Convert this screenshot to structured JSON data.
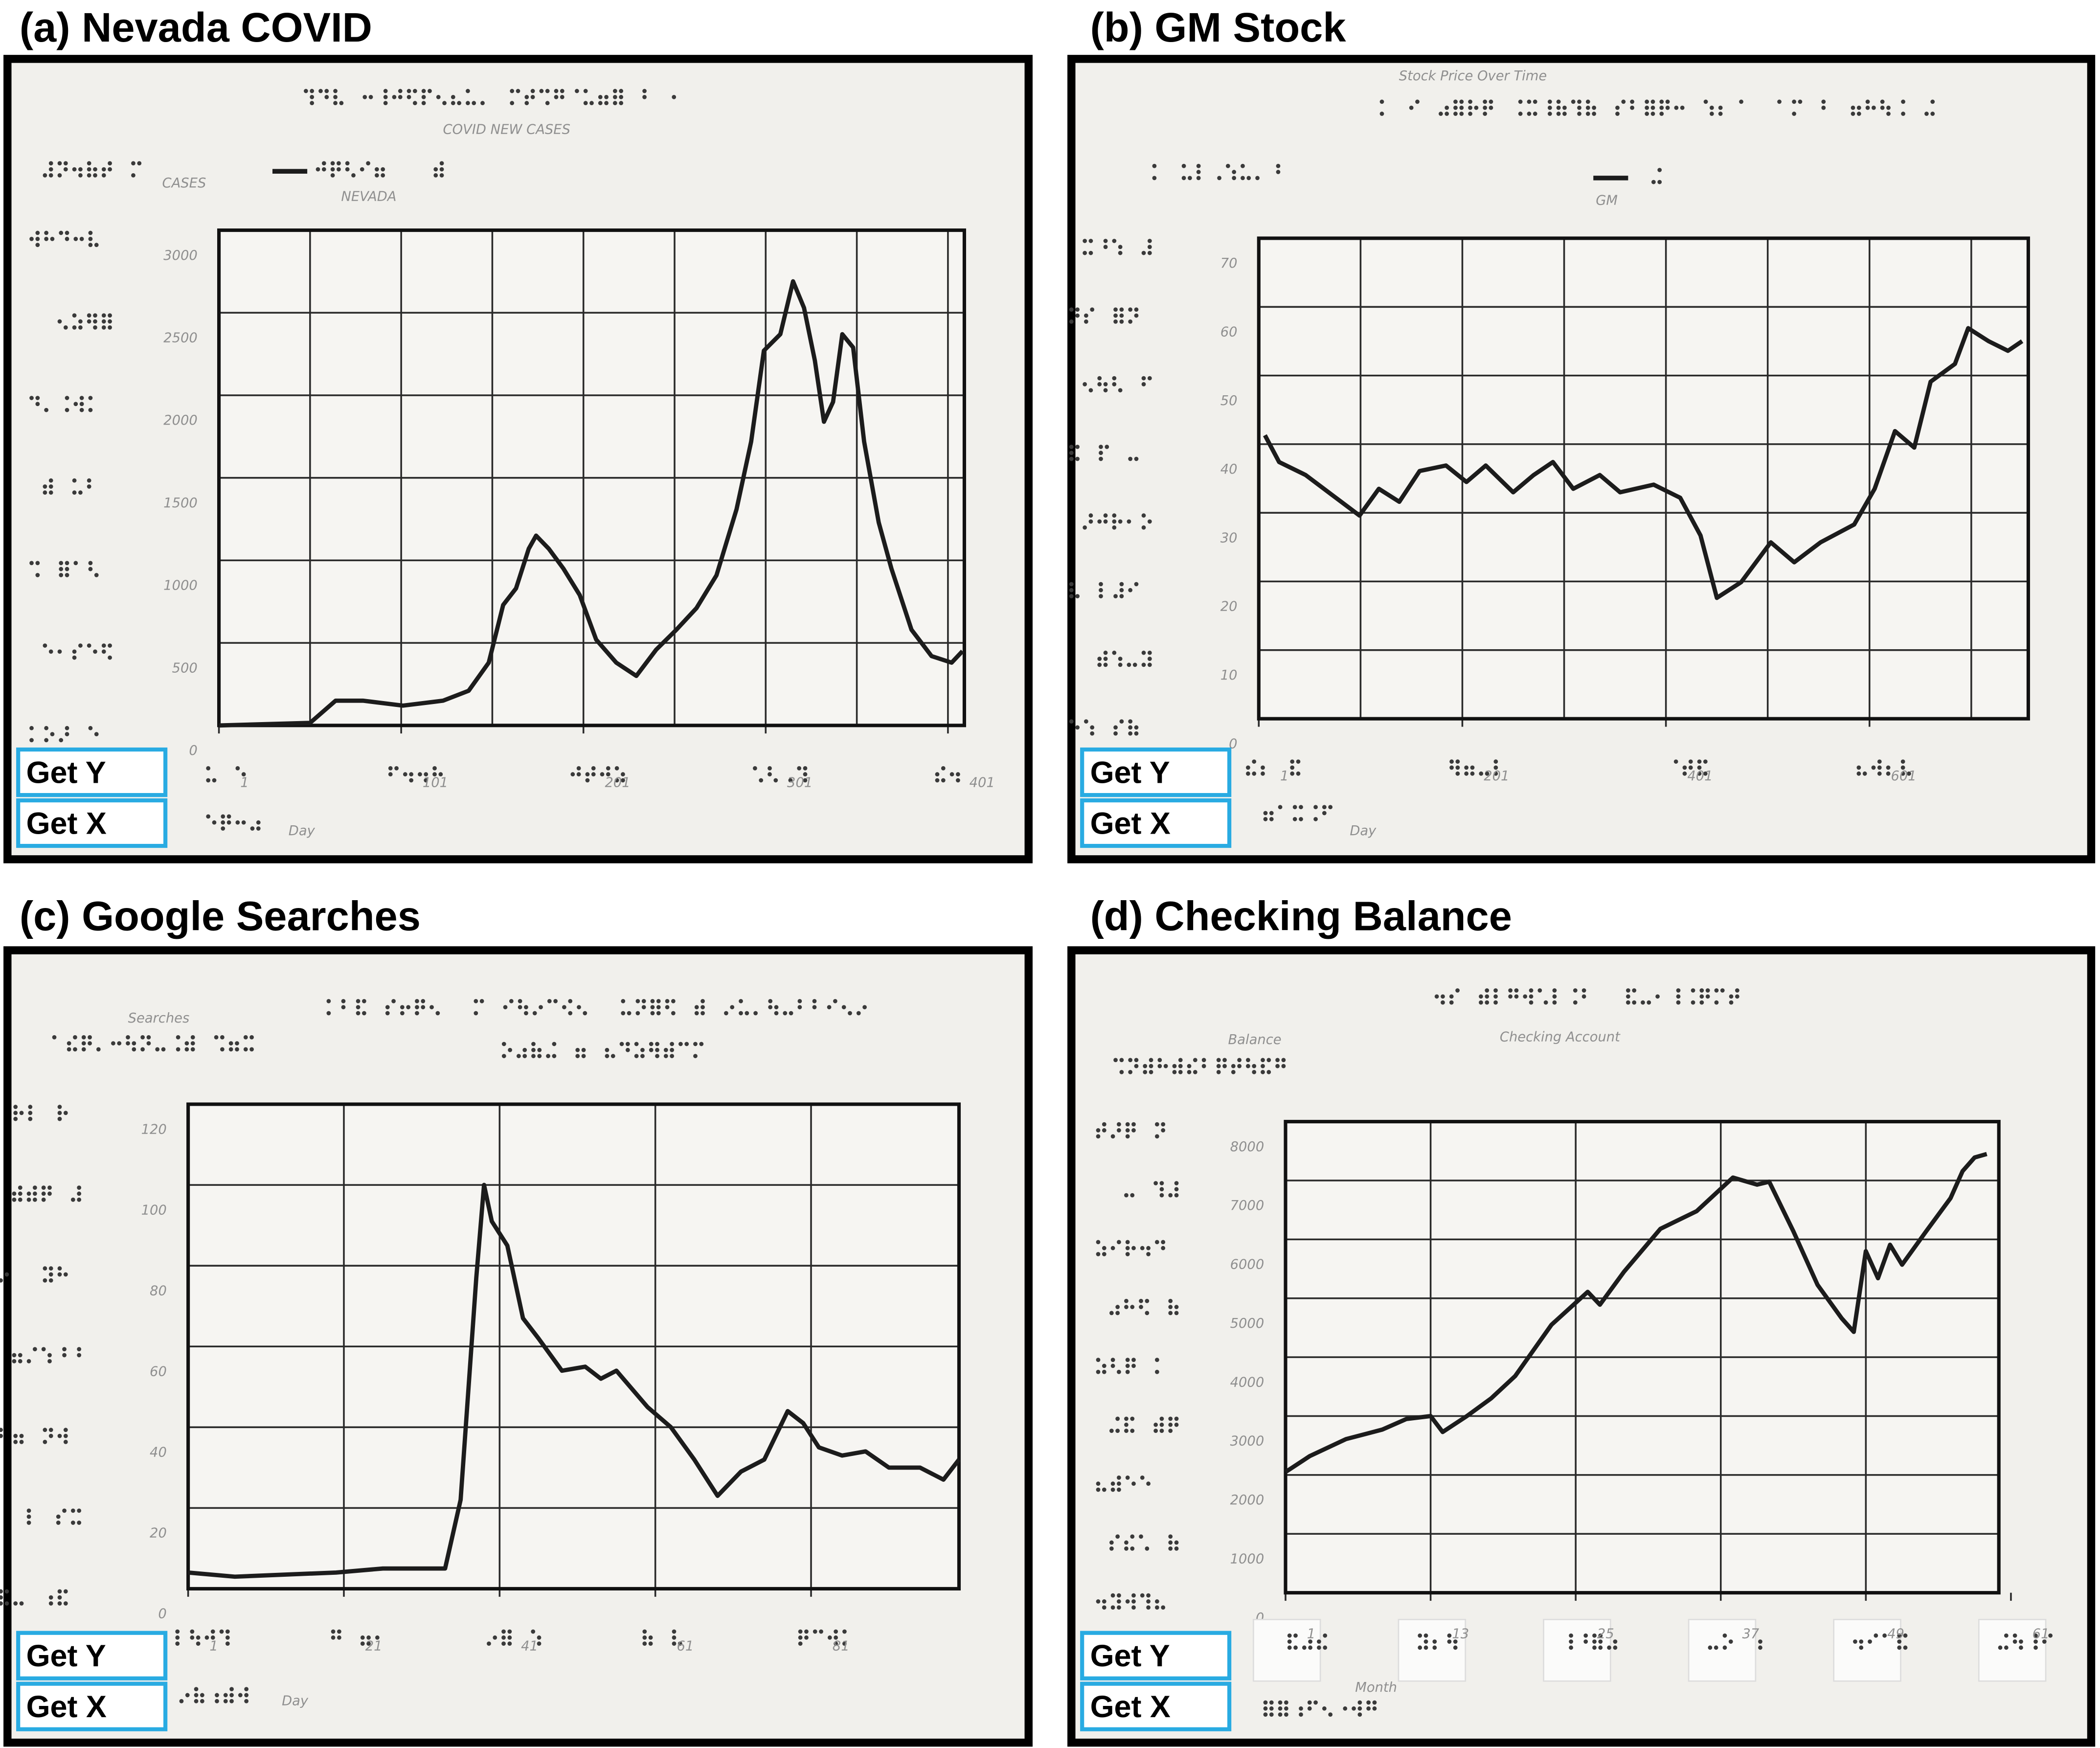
{
  "chart_data": [
    {
      "type": "line",
      "title": "(a) Nevada COVID",
      "chart_title": "COVID NEW CASES",
      "y_label": "CASES",
      "x_label": "Day",
      "x": [
        1,
        51,
        65,
        80,
        102,
        124,
        138,
        149,
        157,
        164,
        171,
        175,
        182,
        190,
        199,
        208,
        219,
        230,
        241,
        252,
        263,
        274,
        285,
        293,
        300,
        309,
        316,
        322,
        328,
        333,
        338,
        343,
        349,
        355,
        363,
        370,
        381,
        392,
        403,
        409
      ],
      "series": [
        {
          "name": "NEVADA",
          "color": "#1c1c1c",
          "values": [
            0,
            15,
            150,
            150,
            120,
            150,
            210,
            380,
            730,
            830,
            1070,
            1150,
            1070,
            950,
            790,
            520,
            380,
            300,
            460,
            580,
            710,
            910,
            1310,
            1720,
            2270,
            2370,
            2690,
            2530,
            2210,
            1840,
            1960,
            2370,
            2290,
            1720,
            1230,
            950,
            580,
            420,
            380,
            450
          ]
        }
      ],
      "xlim": [
        1,
        410
      ],
      "xticks": [
        1,
        101,
        201,
        301,
        401
      ],
      "xgrid": [
        51,
        101,
        151,
        201,
        251,
        301,
        351,
        401
      ],
      "ylim": [
        0,
        3000
      ],
      "yticks": [
        0,
        500,
        1000,
        1500,
        2000,
        2500,
        3000
      ],
      "grid": true,
      "buttons": [
        "Get Y",
        "Get X"
      ]
    },
    {
      "type": "line",
      "title": "(b) GM Stock",
      "chart_title": "Stock Price Over Time",
      "x_label": "Day",
      "x": [
        7,
        21,
        47,
        73,
        100,
        119,
        139,
        159,
        185,
        205,
        224,
        251,
        271,
        290,
        310,
        336,
        356,
        389,
        415,
        435,
        451,
        475,
        504,
        527,
        553,
        586,
        606,
        626,
        645,
        661,
        685,
        698,
        718,
        737,
        751
      ],
      "series": [
        {
          "name": "GM",
          "color": "#1c1c1c",
          "values": [
            41.3,
            37.4,
            35.5,
            32.6,
            29.6,
            33.5,
            31.6,
            36.1,
            36.9,
            34.5,
            36.9,
            33,
            35.5,
            37.4,
            33.5,
            35.5,
            33,
            34.1,
            32.2,
            26.7,
            17.6,
            19.9,
            25.7,
            22.8,
            25.7,
            28.3,
            33.5,
            41.9,
            39.5,
            49.1,
            51.7,
            56.9,
            55,
            53.6,
            55
          ]
        }
      ],
      "xlim": [
        1,
        757
      ],
      "xticks": [
        1,
        201,
        401,
        601
      ],
      "xgrid": [
        101,
        201,
        301,
        401,
        501,
        601,
        701
      ],
      "ylim": [
        0,
        70
      ],
      "yticks": [
        0,
        10,
        20,
        30,
        40,
        50,
        60,
        70
      ],
      "grid": true,
      "buttons": [
        "Get Y",
        "Get X"
      ]
    },
    {
      "type": "line",
      "title": "(c) Google Searches",
      "y_label": "Searches",
      "x_label": "Day",
      "x": [
        1,
        7,
        20,
        26,
        34,
        36,
        38,
        39,
        40,
        42,
        44,
        46,
        49,
        52,
        54,
        56,
        60,
        63,
        66,
        69,
        72,
        75,
        78,
        80,
        82,
        85,
        88,
        91,
        95,
        98,
        100
      ],
      "series": [
        {
          "color": "#1c1c1c",
          "values": [
            4,
            3,
            4,
            5,
            5,
            22,
            77,
            100,
            91,
            85,
            67,
            62,
            54,
            55,
            52,
            54,
            45,
            40,
            32,
            23,
            29,
            32,
            44,
            41,
            35,
            33,
            34,
            30,
            30,
            27,
            32
          ]
        }
      ],
      "xlim": [
        1,
        100
      ],
      "xticks": [
        1,
        21,
        41,
        61,
        81
      ],
      "xgrid": [
        21,
        41,
        61,
        81
      ],
      "ylim": [
        0,
        120
      ],
      "yticks": [
        0,
        20,
        40,
        60,
        80,
        100,
        120
      ],
      "grid": true,
      "buttons": [
        "Get Y",
        "Get X"
      ]
    },
    {
      "type": "line",
      "title": "(d) Checking Balance",
      "chart_title": "Checking Account",
      "y_label": "Balance",
      "x_label": "Month",
      "x": [
        1,
        3,
        6,
        9,
        11,
        13,
        14,
        16,
        18,
        20,
        23,
        26,
        27,
        29,
        32,
        35,
        38,
        40,
        41,
        43,
        45,
        47,
        48,
        49,
        50,
        51,
        52,
        54,
        56,
        57,
        58,
        59
      ],
      "series": [
        {
          "color": "#1c1c1c",
          "values": [
            2050,
            2320,
            2610,
            2770,
            2950,
            3000,
            2730,
            3000,
            3300,
            3680,
            4550,
            5110,
            4890,
            5450,
            6180,
            6480,
            7050,
            6930,
            6980,
            6140,
            5230,
            4660,
            4430,
            5800,
            5340,
            5910,
            5570,
            6140,
            6700,
            7160,
            7390,
            7450
          ]
        }
      ],
      "xlim": [
        1,
        60
      ],
      "xticks": [
        1,
        13,
        25,
        37,
        49,
        61
      ],
      "xgrid": [
        13,
        25,
        37,
        49
      ],
      "ylim": [
        0,
        8000
      ],
      "yticks": [
        0,
        1000,
        2000,
        3000,
        4000,
        5000,
        6000,
        7000,
        8000
      ],
      "grid": true,
      "buttons": [
        "Get Y",
        "Get X"
      ]
    }
  ]
}
